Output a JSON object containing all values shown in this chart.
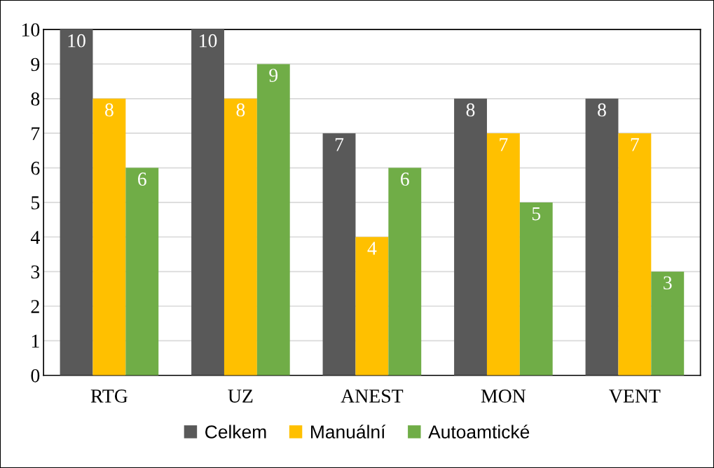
{
  "chart_data": {
    "type": "bar",
    "categories": [
      "RTG",
      "UZ",
      "ANEST",
      "MON",
      "VENT"
    ],
    "series": [
      {
        "name": "Celkem",
        "color": "#595959",
        "values": [
          10,
          10,
          7,
          8,
          8
        ]
      },
      {
        "name": "Manuální",
        "color": "#ffc000",
        "values": [
          8,
          8,
          4,
          7,
          7
        ]
      },
      {
        "name": "Autoamtické",
        "color": "#70ad47",
        "values": [
          6,
          9,
          6,
          5,
          3
        ]
      }
    ],
    "ylim": [
      0,
      10
    ],
    "yticks": [
      0,
      1,
      2,
      3,
      4,
      5,
      6,
      7,
      8,
      9,
      10
    ],
    "grid": "y",
    "legend": "bottom",
    "data_labels": true
  }
}
